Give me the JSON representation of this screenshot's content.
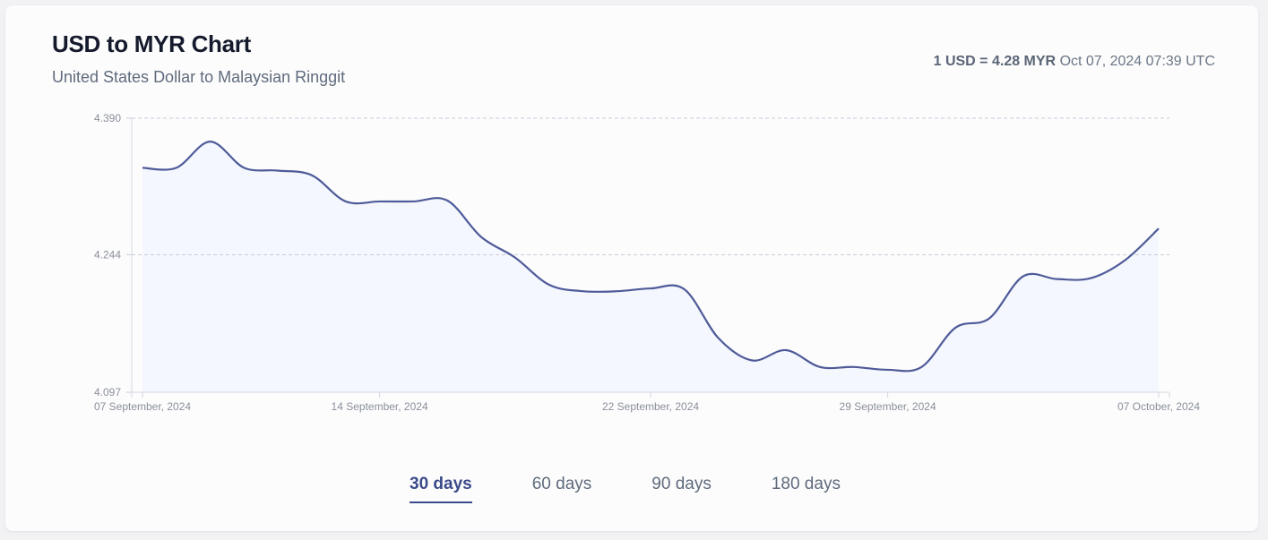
{
  "header": {
    "title": "USD to MYR Chart",
    "subtitle": "United States Dollar to Malaysian Ringgit",
    "rate_bold": "1 USD = 4.28 MYR",
    "rate_time": "Oct 07, 2024 07:39 UTC"
  },
  "tabs": [
    {
      "label": "30 days",
      "active": true
    },
    {
      "label": "60 days"
    },
    {
      "label": "90 days"
    },
    {
      "label": "180 days"
    }
  ],
  "colors": {
    "line": "#4f5b99",
    "fill": "#f4f7fd",
    "grid": "#c9ccd6",
    "tick": "#8a8f99"
  },
  "chart_data": {
    "type": "area",
    "title": "USD to MYR Chart",
    "ylim": [
      4.097,
      4.39
    ],
    "yticks": [
      "4.390",
      "4.244",
      "4.097"
    ],
    "xlim": [
      0,
      30
    ],
    "xticks": [
      {
        "day": 0,
        "label": "07 September, 2024"
      },
      {
        "day": 7,
        "label": "14 September, 2024"
      },
      {
        "day": 15,
        "label": "22 September, 2024"
      },
      {
        "day": 22,
        "label": "29 September, 2024"
      },
      {
        "day": 30,
        "label": "07 October, 2024"
      }
    ],
    "values": [
      4.337,
      4.337,
      4.365,
      4.337,
      4.334,
      4.329,
      4.301,
      4.301,
      4.301,
      4.302,
      4.263,
      4.241,
      4.212,
      4.205,
      4.205,
      4.208,
      4.207,
      4.155,
      4.131,
      4.142,
      4.124,
      4.124,
      4.121,
      4.124,
      4.166,
      4.176,
      4.221,
      4.218,
      4.219,
      4.238,
      4.272
    ],
    "grid": true
  }
}
